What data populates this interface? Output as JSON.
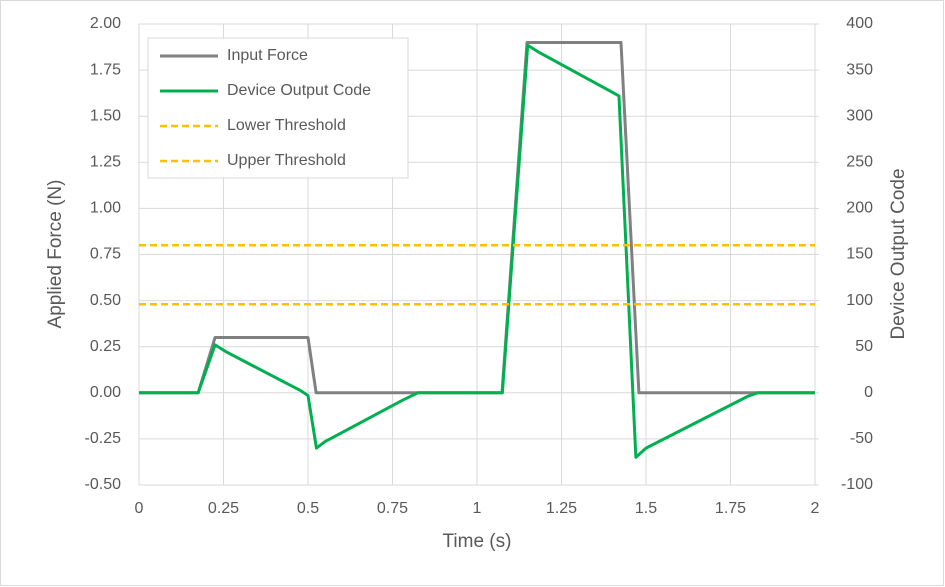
{
  "chart_data": {
    "type": "line",
    "xlabel": "Time (s)",
    "ylabel": "Applied Force (N)",
    "y2label": "Device Output Code",
    "xlim": [
      0,
      2
    ],
    "xticks": [
      0,
      0.25,
      0.5,
      0.75,
      1,
      1.25,
      1.5,
      1.75,
      2
    ],
    "ylim": [
      -0.5,
      2
    ],
    "yticks": [
      {
        "value": -0.5,
        "label": "-0.50"
      },
      {
        "value": -0.25,
        "label": "-0.25"
      },
      {
        "value": 0,
        "label": "0.00"
      },
      {
        "value": 0.25,
        "label": "0.25"
      },
      {
        "value": 0.5,
        "label": "0.50"
      },
      {
        "value": 0.75,
        "label": "0.75"
      },
      {
        "value": 1,
        "label": "1.00"
      },
      {
        "value": 1.25,
        "label": "1.25"
      },
      {
        "value": 1.5,
        "label": "1.50"
      },
      {
        "value": 1.75,
        "label": "1.75"
      },
      {
        "value": 2,
        "label": "2.00"
      }
    ],
    "y2lim": [
      -100,
      400
    ],
    "y2ticks": [
      -100,
      -50,
      0,
      50,
      100,
      150,
      200,
      250,
      300,
      350,
      400
    ],
    "grid": true,
    "legend": "upper left",
    "series": [
      {
        "name": "Input Force",
        "color": "#808080",
        "dash": false,
        "axis": "y",
        "x": [
          0,
          0.175,
          0.225,
          0.5,
          0.524,
          1.074,
          1.148,
          1.426,
          1.479,
          2
        ],
        "values": [
          0,
          0,
          0.3,
          0.3,
          0,
          0,
          1.9,
          1.9,
          0,
          0
        ]
      },
      {
        "name": "Device Output Code",
        "color": "#00b050",
        "dash": false,
        "axis": "y2",
        "x": [
          0,
          0.175,
          0.225,
          0.26,
          0.48,
          0.5,
          0.525,
          0.55,
          0.78,
          0.825,
          1.075,
          1.15,
          1.18,
          1.4,
          1.42,
          1.47,
          1.5,
          1.8,
          1.83,
          2
        ],
        "values": [
          0,
          0,
          52,
          44,
          2,
          -3,
          -60,
          -53,
          -8,
          0,
          0,
          377,
          370,
          326,
          322,
          -70,
          -60,
          -4,
          0,
          0
        ]
      },
      {
        "name": "Lower Threshold",
        "color": "#ffc000",
        "dash": true,
        "axis": "y2",
        "x": [
          0,
          2
        ],
        "values": [
          96,
          96
        ]
      },
      {
        "name": "Upper Threshold",
        "color": "#ffc000",
        "dash": true,
        "axis": "y2",
        "x": [
          0,
          2
        ],
        "values": [
          160,
          160
        ]
      }
    ]
  }
}
